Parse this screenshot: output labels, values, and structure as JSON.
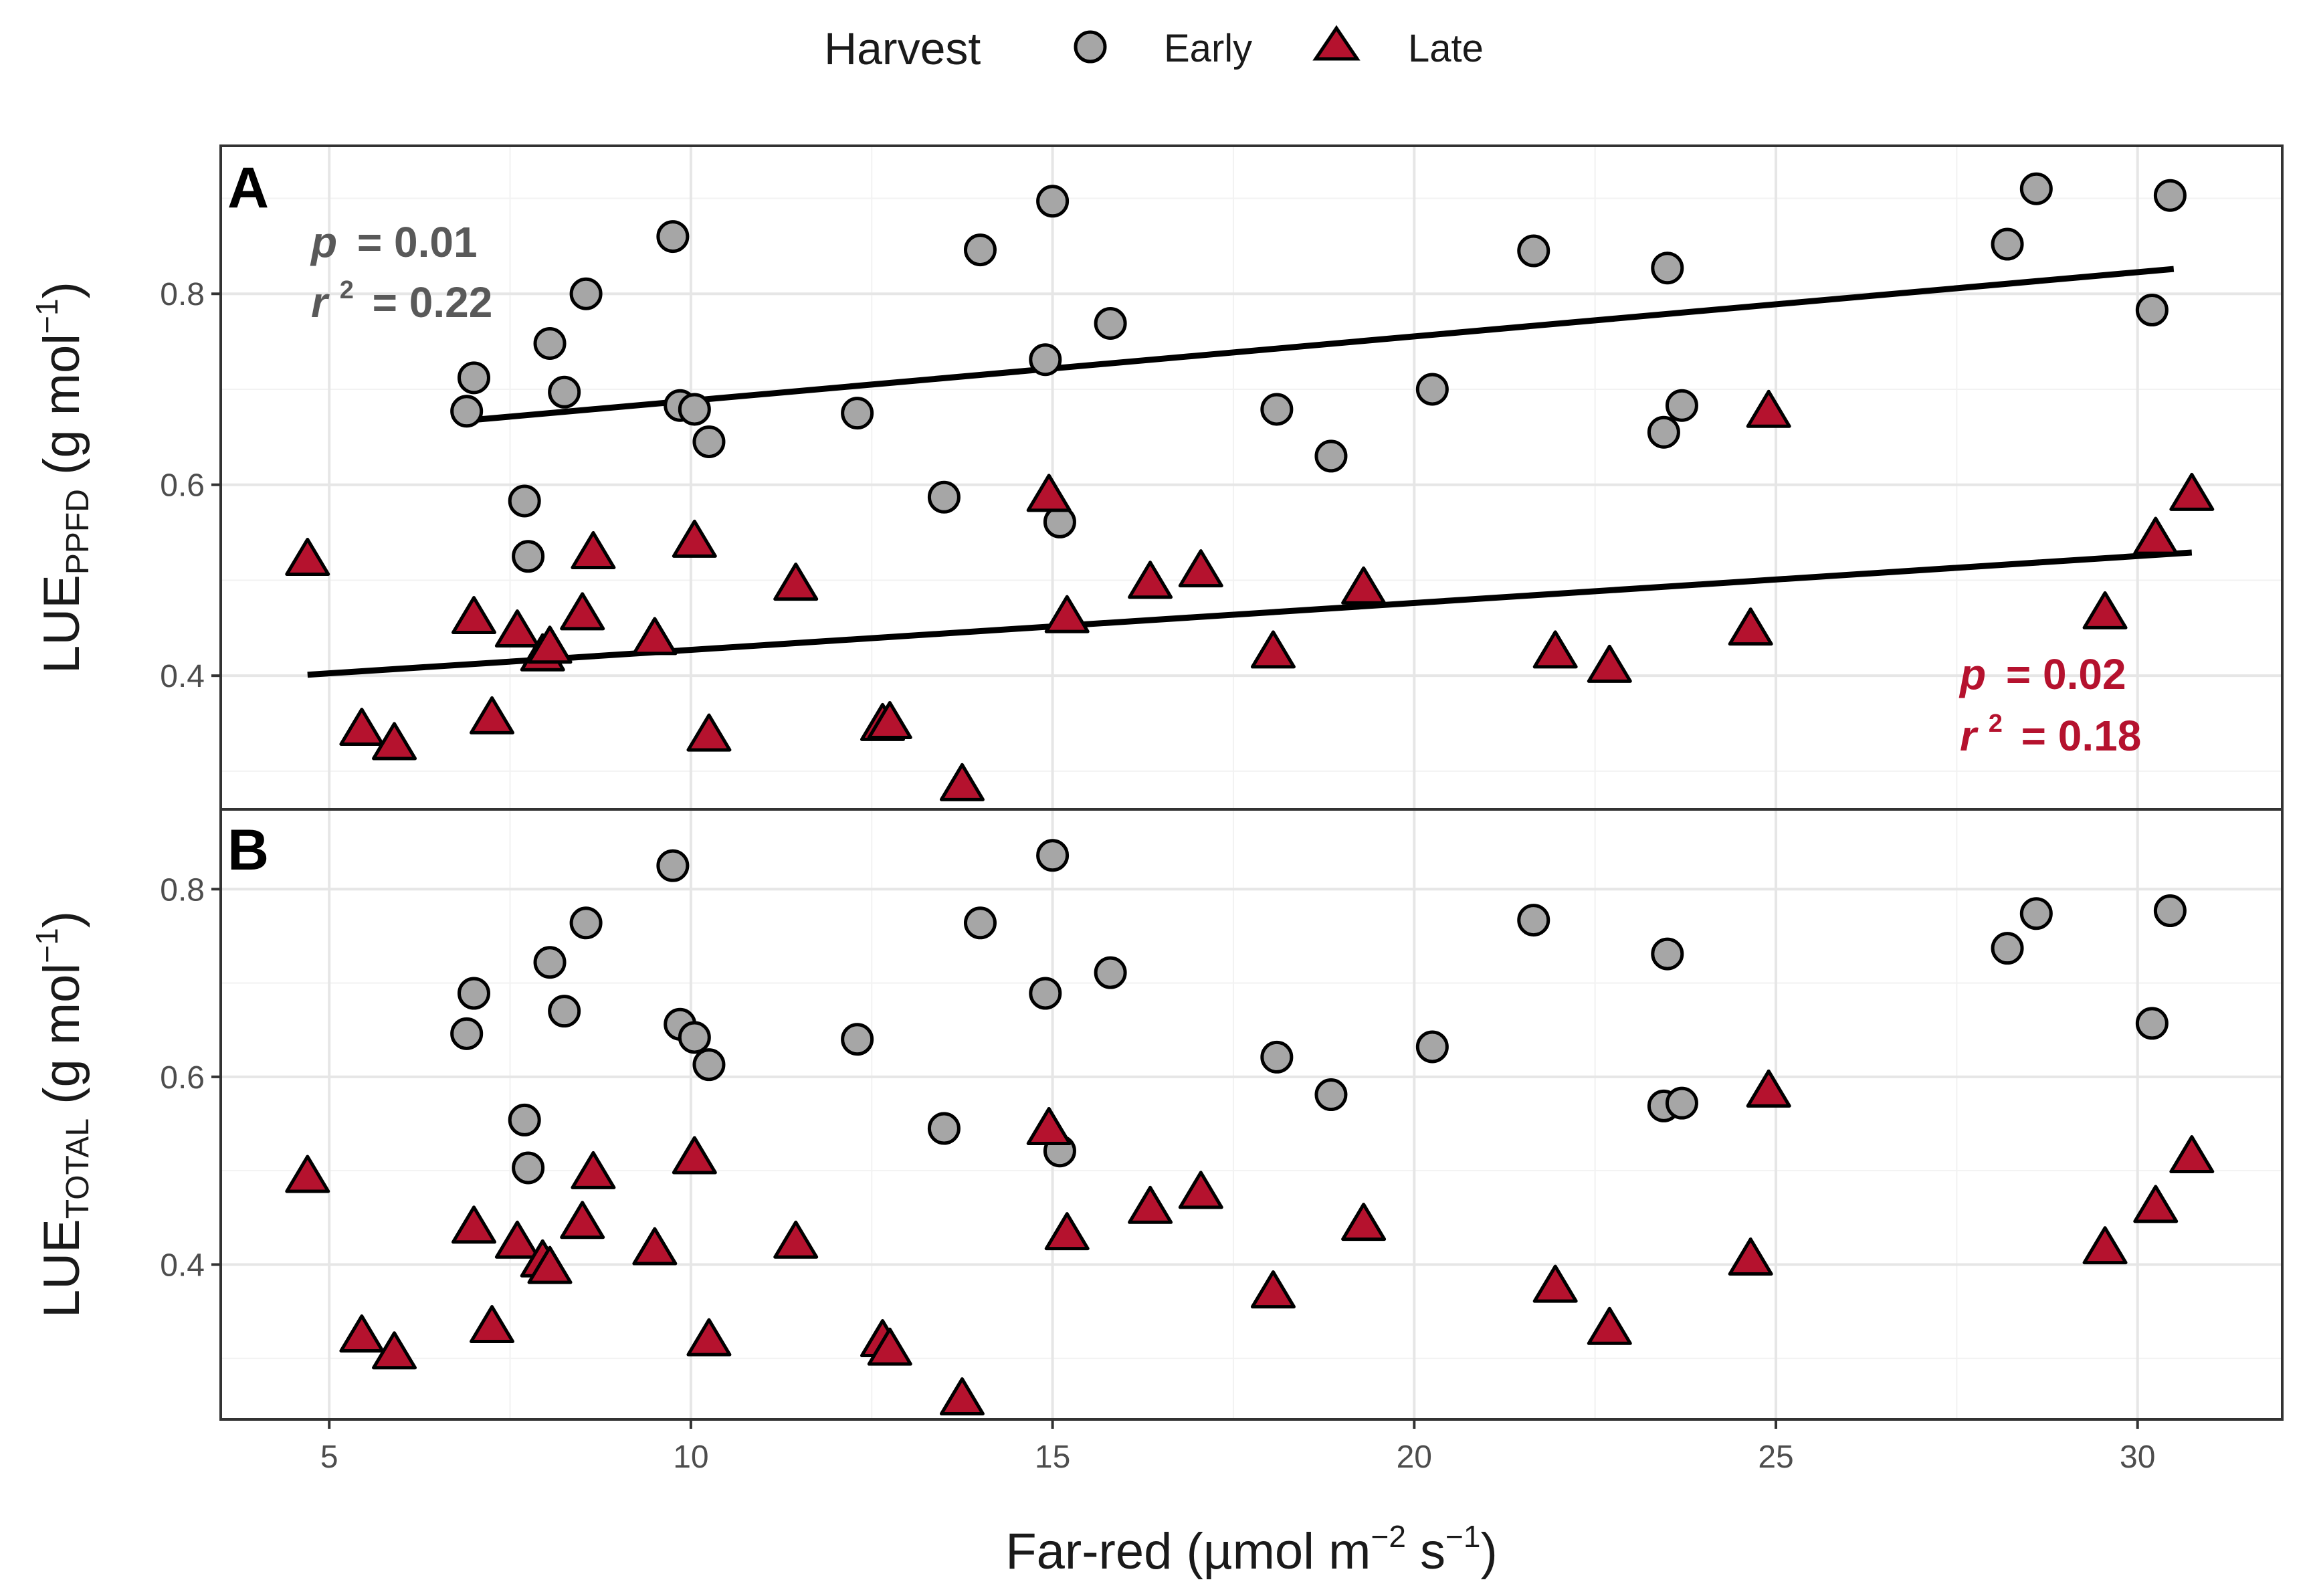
{
  "legend": {
    "title": "Harvest",
    "items": [
      {
        "label": "Early",
        "shape": "circle",
        "color": "#a6a6a6"
      },
      {
        "label": "Late",
        "shape": "triangle",
        "color": "#b5122e"
      }
    ]
  },
  "axes": {
    "xlabel_main": "Far-red (µmol m",
    "xlabel_sup1": "−2",
    "xlabel_mid": " s",
    "xlabel_sup2": "−1",
    "xlabel_end": ")",
    "x_ticks": [
      "5",
      "10",
      "15",
      "20",
      "25",
      "30"
    ],
    "y_ticks": [
      "0.4",
      "0.6",
      "0.8"
    ]
  },
  "panels": [
    {
      "tag": "A",
      "ylabel_main": "LUE",
      "ylabel_sub": "PPFD",
      "ylabel_unit": " (g mol",
      "ylabel_sup": "−1",
      "ylabel_end": ")",
      "stats": [
        {
          "p_label": "p",
          "p_value": "= 0.01",
          "r_label": "r",
          "r_sup": "2",
          "r_value": "= 0.22",
          "color": "#595959"
        },
        {
          "p_label": "p",
          "p_value": "= 0.02",
          "r_label": "r",
          "r_sup": "2",
          "r_value": "= 0.18",
          "color": "#b5122e"
        }
      ]
    },
    {
      "tag": "B",
      "ylabel_main": "LUE",
      "ylabel_sub": "TOTAL",
      "ylabel_unit": " (g mol",
      "ylabel_sup": "−1",
      "ylabel_end": ")",
      "stats": []
    }
  ],
  "colors": {
    "early_fill": "#a6a6a6",
    "late_fill": "#b5122e",
    "stroke": "#000000",
    "grid_major": "#e6e6e6",
    "grid_minor": "#f2f2f2",
    "panel_border": "#333333"
  },
  "chart_data": [
    {
      "type": "scatter",
      "title": "A",
      "xlabel": "Far-red (µmol m−2 s−1)",
      "ylabel": "LUE PPFD (g mol−1)",
      "xlim": [
        3.5,
        32
      ],
      "ylim": [
        0.26,
        0.955
      ],
      "x_ticks": [
        5,
        10,
        15,
        20,
        25,
        30
      ],
      "y_ticks": [
        0.4,
        0.6,
        0.8
      ],
      "series": [
        {
          "name": "Early",
          "x": [
            6.9,
            7.0,
            7.7,
            7.75,
            8.05,
            8.25,
            8.55,
            9.75,
            9.85,
            10.05,
            10.25,
            12.3,
            13.5,
            14.0,
            14.9,
            15.0,
            15.1,
            15.8,
            18.1,
            18.85,
            20.25,
            21.65,
            23.45,
            23.5,
            23.7,
            28.2,
            28.6,
            30.2,
            30.45
          ],
          "y": [
            0.677,
            0.712,
            0.583,
            0.525,
            0.748,
            0.697,
            0.8,
            0.86,
            0.683,
            0.679,
            0.645,
            0.675,
            0.587,
            0.846,
            0.731,
            0.897,
            0.561,
            0.769,
            0.679,
            0.63,
            0.7,
            0.845,
            0.655,
            0.827,
            0.683,
            0.852,
            0.91,
            0.783,
            0.903
          ]
        },
        {
          "name": "Late",
          "x": [
            4.7,
            5.45,
            5.9,
            7.0,
            7.25,
            7.6,
            7.95,
            8.05,
            8.5,
            8.65,
            9.5,
            10.05,
            10.25,
            11.45,
            12.65,
            12.75,
            13.75,
            14.95,
            15.2,
            16.35,
            17.05,
            18.05,
            19.3,
            21.95,
            22.7,
            24.65,
            24.9,
            29.55,
            30.25,
            30.75
          ],
          "y": [
            0.521,
            0.343,
            0.328,
            0.46,
            0.355,
            0.446,
            0.421,
            0.429,
            0.464,
            0.528,
            0.438,
            0.54,
            0.337,
            0.495,
            0.348,
            0.35,
            0.285,
            0.588,
            0.461,
            0.497,
            0.509,
            0.424,
            0.491,
            0.424,
            0.409,
            0.448,
            0.676,
            0.465,
            0.543,
            0.589
          ]
        }
      ],
      "fits": [
        {
          "series": "Early",
          "x": [
            7.0,
            30.5
          ],
          "y": [
            0.668,
            0.826
          ]
        },
        {
          "series": "Late",
          "x": [
            4.7,
            30.75
          ],
          "y": [
            0.401,
            0.529
          ]
        }
      ],
      "annotations": [
        {
          "series": "Early",
          "text": "p = 0.01; r2 = 0.22",
          "placement": "top-left"
        },
        {
          "series": "Late",
          "text": "p = 0.02; r2 = 0.18",
          "placement": "bottom-right"
        }
      ]
    },
    {
      "type": "scatter",
      "title": "B",
      "xlabel": "Far-red (µmol m−2 s−1)",
      "ylabel": "LUE TOTAL (g mol−1)",
      "xlim": [
        3.5,
        32
      ],
      "ylim": [
        0.235,
        0.885
      ],
      "x_ticks": [
        5,
        10,
        15,
        20,
        25,
        30
      ],
      "y_ticks": [
        0.4,
        0.6,
        0.8
      ],
      "series": [
        {
          "name": "Early",
          "x": [
            6.9,
            7.0,
            7.7,
            7.75,
            8.05,
            8.25,
            8.55,
            9.75,
            9.85,
            10.05,
            10.25,
            12.3,
            13.5,
            14.0,
            14.9,
            15.0,
            15.1,
            15.8,
            18.1,
            18.85,
            20.25,
            21.65,
            23.45,
            23.5,
            23.7,
            28.2,
            28.6,
            30.2,
            30.45
          ],
          "y": [
            0.646,
            0.689,
            0.554,
            0.503,
            0.722,
            0.67,
            0.764,
            0.825,
            0.656,
            0.642,
            0.613,
            0.64,
            0.545,
            0.764,
            0.689,
            0.836,
            0.521,
            0.711,
            0.621,
            0.581,
            0.632,
            0.767,
            0.569,
            0.731,
            0.572,
            0.737,
            0.774,
            0.657,
            0.777
          ]
        },
        {
          "name": "Late",
          "x": [
            4.7,
            5.45,
            5.9,
            7.0,
            7.25,
            7.6,
            7.95,
            8.05,
            8.5,
            8.65,
            9.5,
            10.05,
            10.25,
            11.45,
            12.65,
            12.75,
            13.75,
            14.95,
            15.2,
            16.35,
            17.05,
            18.05,
            19.3,
            21.95,
            22.7,
            24.65,
            24.9,
            29.55,
            30.25,
            30.75
          ],
          "y": [
            0.493,
            0.323,
            0.305,
            0.439,
            0.333,
            0.423,
            0.403,
            0.396,
            0.444,
            0.497,
            0.416,
            0.513,
            0.319,
            0.423,
            0.318,
            0.309,
            0.256,
            0.544,
            0.432,
            0.46,
            0.476,
            0.37,
            0.442,
            0.376,
            0.331,
            0.405,
            0.584,
            0.417,
            0.461,
            0.514
          ]
        }
      ]
    }
  ]
}
